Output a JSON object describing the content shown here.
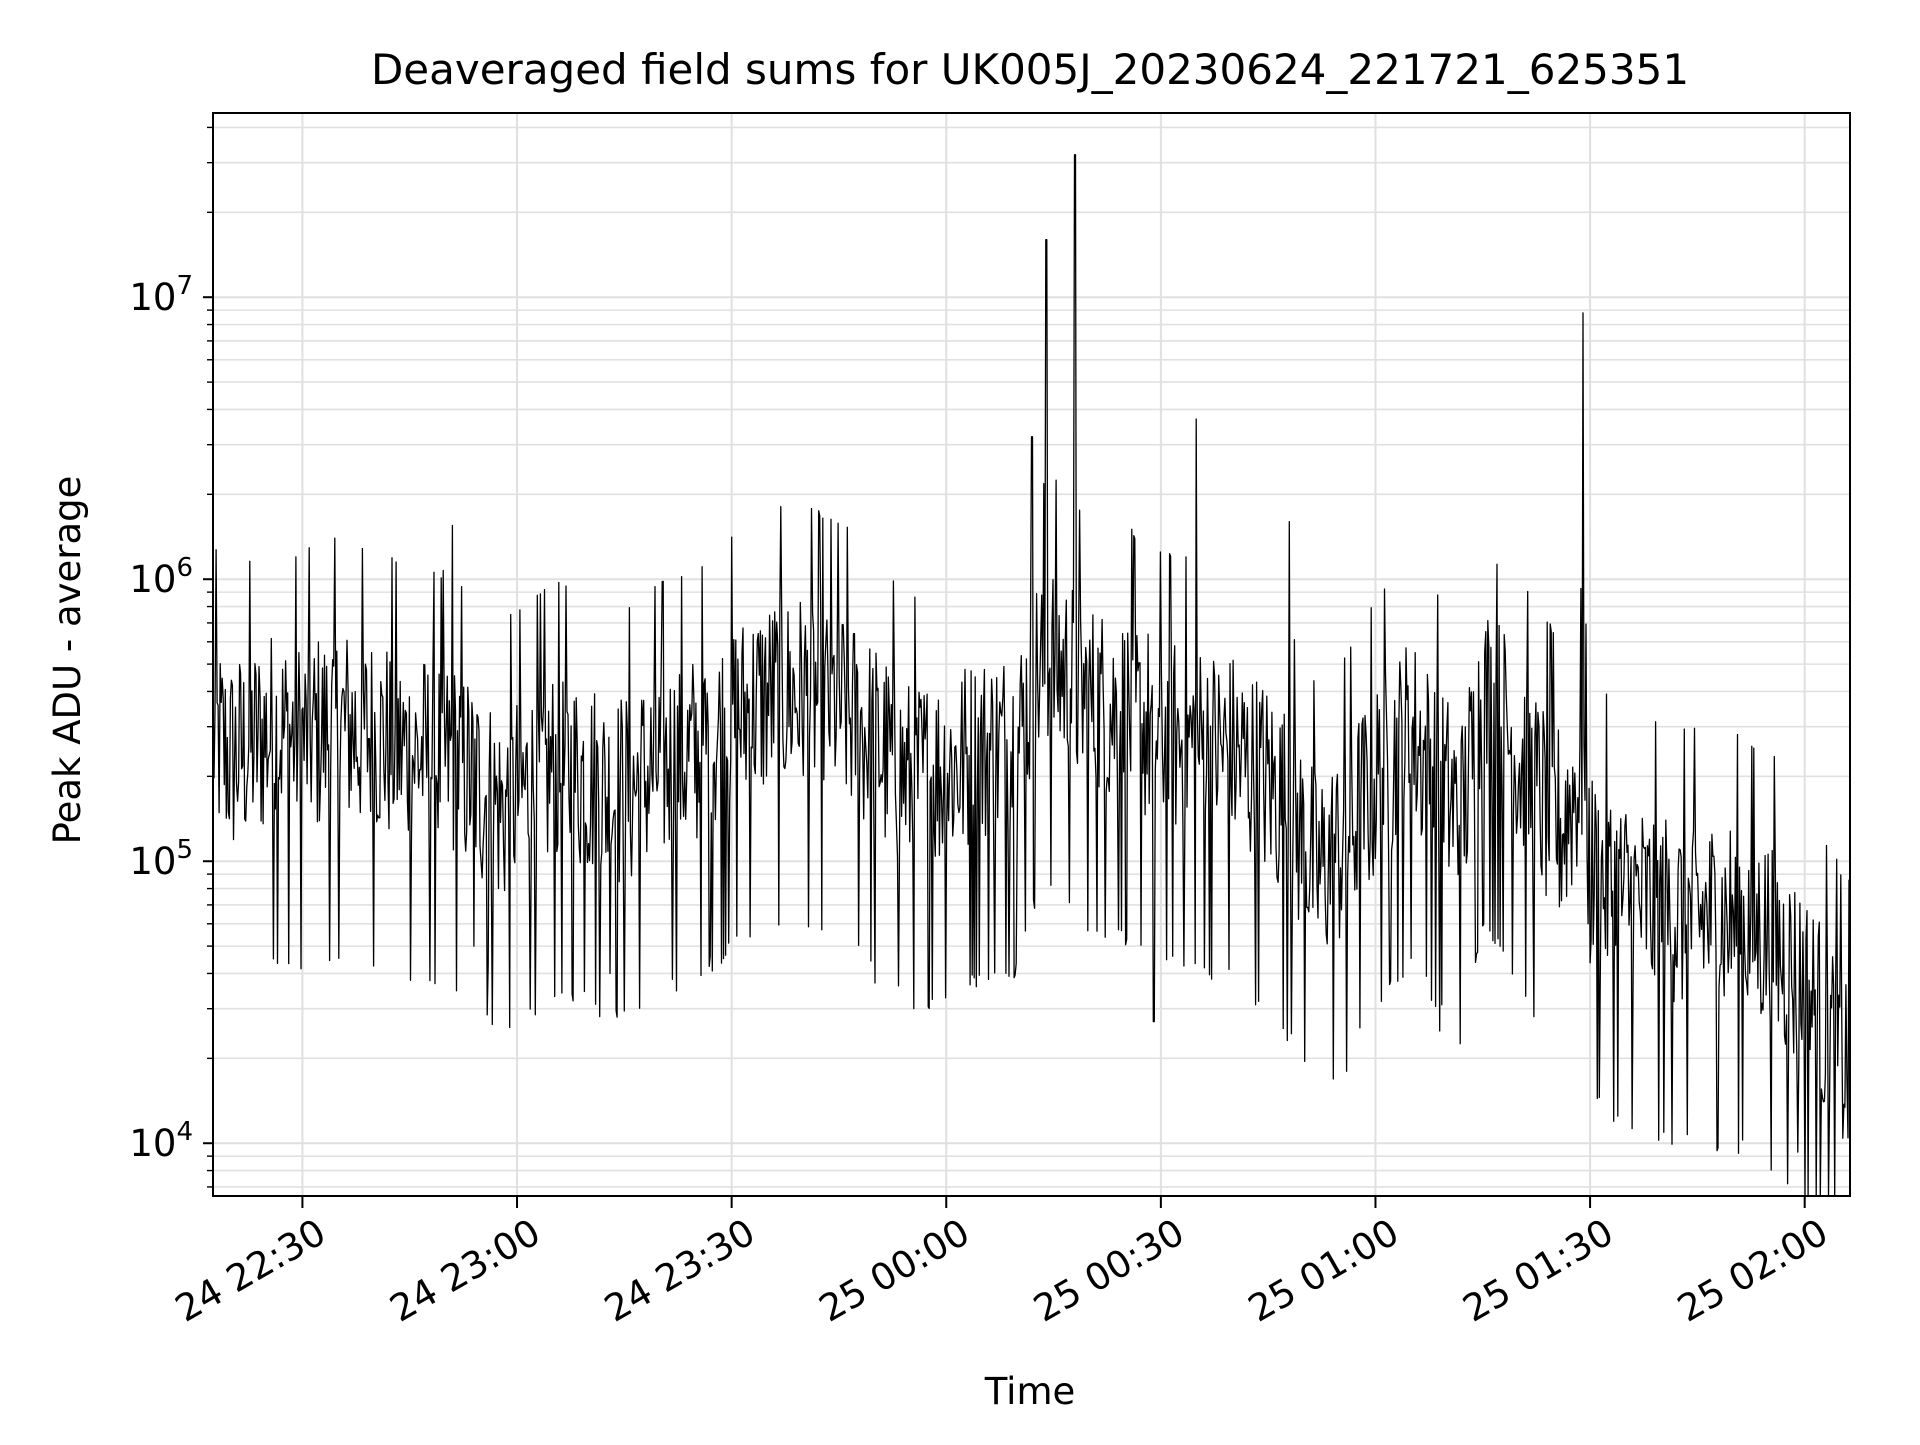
{
  "chart_data": {
    "type": "line",
    "title": "Deaveraged field sums for UK005J_20230624_221721_625351",
    "xlabel": "Time",
    "ylabel": "Peak ADU - average",
    "yscale": "log",
    "ylim": [
      6500,
      45000000
    ],
    "xlim": [
      "2023-06-24 22:17:30",
      "2023-06-25 02:06:20"
    ],
    "grid": true,
    "line_color": "#000000",
    "grid_color": "#e0e0e0",
    "x_ticks": [
      {
        "t": "2023-06-24 22:30",
        "label": "24 22:30"
      },
      {
        "t": "2023-06-24 23:00",
        "label": "24 23:00"
      },
      {
        "t": "2023-06-24 23:30",
        "label": "24 23:30"
      },
      {
        "t": "2023-06-25 00:00",
        "label": "25 00:00"
      },
      {
        "t": "2023-06-25 00:30",
        "label": "25 00:30"
      },
      {
        "t": "2023-06-25 01:00",
        "label": "25 01:00"
      },
      {
        "t": "2023-06-25 01:30",
        "label": "25 01:30"
      },
      {
        "t": "2023-06-25 02:00",
        "label": "25 02:00"
      }
    ],
    "y_ticks": [
      {
        "value": 10000,
        "base": "10",
        "exp": "4"
      },
      {
        "value": 100000,
        "base": "10",
        "exp": "5"
      },
      {
        "value": 1000000,
        "base": "10",
        "exp": "6"
      },
      {
        "value": 10000000,
        "base": "10",
        "exp": "7"
      }
    ],
    "series": [
      {
        "x": [
          "2023-06-24 22:17:30",
          "2023-06-24 22:20:00",
          "2023-06-24 22:23:00",
          "2023-06-24 22:26:00",
          "2023-06-24 22:30:00",
          "2023-06-24 22:35:00",
          "2023-06-24 22:40:00",
          "2023-06-24 22:45:00",
          "2023-06-24 22:50:00",
          "2023-06-24 22:52:00",
          "2023-06-24 22:55:00",
          "2023-06-24 22:58:00",
          "2023-06-24 23:00:00",
          "2023-06-24 23:05:00",
          "2023-06-24 23:10:00",
          "2023-06-24 23:13:00",
          "2023-06-24 23:16:00",
          "2023-06-24 23:20:00",
          "2023-06-24 23:25:00",
          "2023-06-24 23:30:00",
          "2023-06-24 23:35:00",
          "2023-06-24 23:40:00",
          "2023-06-24 23:45:00",
          "2023-06-24 23:50:00",
          "2023-06-24 23:55:00",
          "2023-06-25 00:00:00",
          "2023-06-25 00:05:00",
          "2023-06-25 00:10:00",
          "2023-06-25 00:12:00",
          "2023-06-25 00:14:00",
          "2023-06-25 00:16:00",
          "2023-06-25 00:18:00",
          "2023-06-25 00:20:00",
          "2023-06-25 00:25:00",
          "2023-06-25 00:30:00",
          "2023-06-25 00:35:00",
          "2023-06-25 00:40:00",
          "2023-06-25 00:45:00",
          "2023-06-25 00:48:00",
          "2023-06-25 00:52:00",
          "2023-06-25 00:55:00",
          "2023-06-25 01:00:00",
          "2023-06-25 01:05:00",
          "2023-06-25 01:08:00",
          "2023-06-25 01:12:00",
          "2023-06-25 01:15:00",
          "2023-06-25 01:18:00",
          "2023-06-25 01:22:00",
          "2023-06-25 01:26:00",
          "2023-06-25 01:29:00",
          "2023-06-25 01:30:00",
          "2023-06-25 01:35:00",
          "2023-06-25 01:40:00",
          "2023-06-25 01:45:00",
          "2023-06-25 01:50:00",
          "2023-06-25 01:55:00",
          "2023-06-25 02:00:00",
          "2023-06-25 02:06:20"
        ],
        "y": [
          280000,
          230000,
          260000,
          290000,
          270000,
          300000,
          280000,
          240000,
          230000,
          220000,
          180000,
          150000,
          170000,
          210000,
          200000,
          170000,
          180000,
          220000,
          240000,
          310000,
          380000,
          390000,
          360000,
          260000,
          190000,
          210000,
          240000,
          260000,
          420000,
          520000,
          480000,
          420000,
          360000,
          330000,
          280000,
          260000,
          240000,
          190000,
          150000,
          90000,
          110000,
          190000,
          280000,
          210000,
          140000,
          380000,
          300000,
          180000,
          130000,
          220000,
          90000,
          75000,
          65000,
          63000,
          62000,
          55000,
          35000,
          18000
        ],
        "spikes": [
          {
            "t": "2023-06-24 22:51:00",
            "value": 1550000
          },
          {
            "t": "2023-06-24 22:54:00",
            "value": 50000
          },
          {
            "t": "2023-06-24 22:56:00",
            "value": 43000
          },
          {
            "t": "2023-06-24 23:13:00",
            "value": 40000
          },
          {
            "t": "2023-06-24 23:27:00",
            "value": 46000
          },
          {
            "t": "2023-06-24 23:50:00",
            "value": 37000
          },
          {
            "t": "2023-06-25 00:12:00",
            "value": 3200000
          },
          {
            "t": "2023-06-25 00:14:00",
            "value": 16000000
          },
          {
            "t": "2023-06-25 00:18:00",
            "value": 32000000
          },
          {
            "t": "2023-06-25 00:29:00",
            "value": 27000
          },
          {
            "t": "2023-06-25 00:35:00",
            "value": 3700000
          },
          {
            "t": "2023-06-25 00:48:00",
            "value": 1600000
          },
          {
            "t": "2023-06-25 00:56:00",
            "value": 18000
          },
          {
            "t": "2023-06-25 01:09:00",
            "value": 25000
          },
          {
            "t": "2023-06-25 01:17:00",
            "value": 1130000
          },
          {
            "t": "2023-06-25 01:29:00",
            "value": 8800000
          },
          {
            "t": "2023-06-25 01:59:00",
            "value": 9300
          }
        ]
      }
    ]
  }
}
